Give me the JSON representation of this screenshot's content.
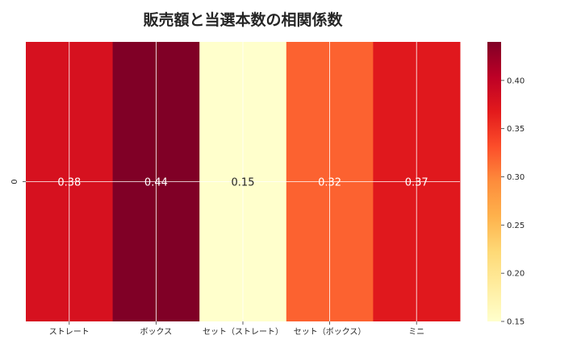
{
  "chart_data": {
    "type": "heatmap",
    "title": "販売額と当選本数の相関係数",
    "x_categories": [
      "ストレート",
      "ボックス",
      "セット（ストレート）",
      "セット（ボックス）",
      "ミニ"
    ],
    "y_categories": [
      "0"
    ],
    "values": [
      [
        0.38,
        0.44,
        0.15,
        0.32,
        0.37
      ]
    ],
    "value_labels": [
      "0.38",
      "0.44",
      "0.15",
      "0.32",
      "0.37"
    ],
    "colorbar": {
      "range": [
        0.15,
        0.44
      ],
      "ticks": [
        "0.15",
        "0.20",
        "0.25",
        "0.30",
        "0.35",
        "0.40"
      ],
      "colormap": "YlOrRd"
    },
    "grid": true
  }
}
